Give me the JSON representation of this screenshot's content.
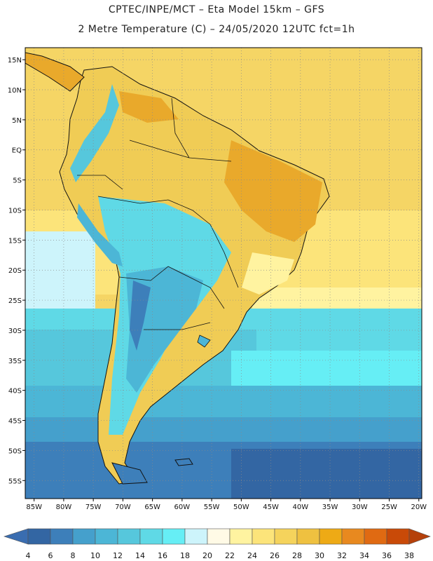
{
  "header": {
    "title_line1": "CPTEC/INPE/MCT –  Eta Model 15km – GFS",
    "title_line2": "2 Metre Temperature (C) – 24/05/2020 12UTC fct=1h"
  },
  "map": {
    "region": "South America",
    "lon_labels": [
      "85W",
      "80W",
      "75W",
      "70W",
      "65W",
      "60W",
      "55W",
      "50W",
      "45W",
      "40W",
      "35W",
      "30W",
      "25W",
      "20W"
    ],
    "lat_labels": [
      "15N",
      "10N",
      "5N",
      "EQ",
      "5S",
      "10S",
      "15S",
      "20S",
      "25S",
      "30S",
      "35S",
      "40S",
      "45S",
      "50S",
      "55S"
    ],
    "lon_values": [
      -85,
      -80,
      -75,
      -70,
      -65,
      -60,
      -55,
      -50,
      -45,
      -40,
      -35,
      -30,
      -25,
      -20
    ],
    "lat_values": [
      15,
      10,
      5,
      0,
      -5,
      -10,
      -15,
      -20,
      -25,
      -30,
      -35,
      -40,
      -45,
      -50,
      -55
    ],
    "lon_range": [
      -86.5,
      -19.5
    ],
    "lat_range": [
      -58,
      17
    ]
  },
  "colorbar": {
    "labels": [
      "4",
      "6",
      "8",
      "10",
      "12",
      "14",
      "16",
      "18",
      "20",
      "22",
      "24",
      "26",
      "28",
      "30",
      "32",
      "34",
      "36",
      "38"
    ],
    "colors": [
      "#3366a3",
      "#3d7fba",
      "#45a0cc",
      "#4cb6d6",
      "#56c7dc",
      "#5fd9e6",
      "#66eef5",
      "#cdf4fb",
      "#fffae6",
      "#fff3a0",
      "#fce47a",
      "#f5d35c",
      "#efc140",
      "#eeaa15",
      "#e8891f",
      "#e06a12",
      "#c94a08"
    ],
    "low_color": "#3a6db0",
    "high_color": "#b5400a"
  },
  "colors": {
    "land_warm": "#f0cc55",
    "land_hot": "#e9a92b",
    "ocean_cold": "#2f5e9e",
    "grid": "#8a8a8a"
  }
}
